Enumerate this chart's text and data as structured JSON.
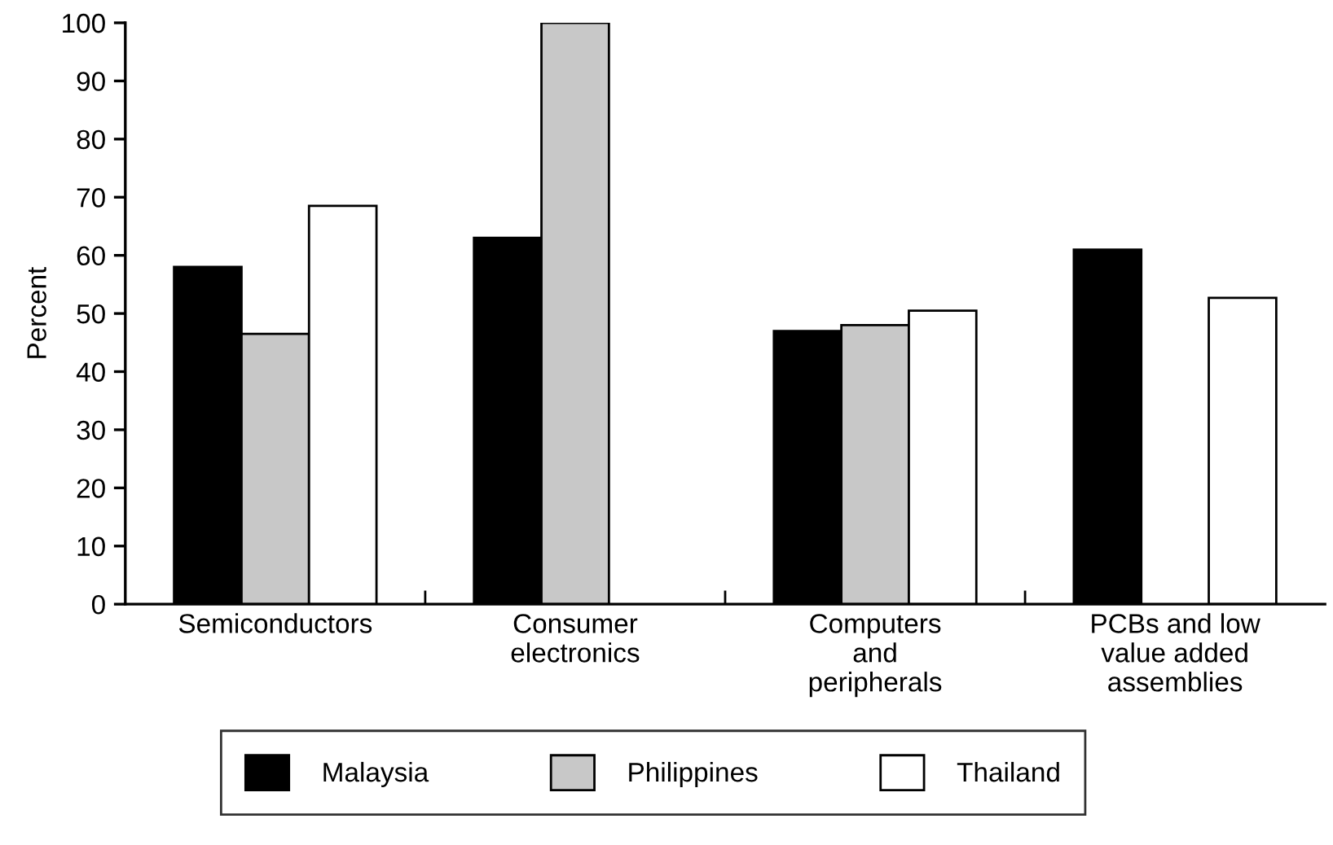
{
  "chart_data": {
    "type": "bar",
    "ylabel": "Percent",
    "categories": [
      "Semiconductors",
      "Consumer\nelectronics",
      "Computers\nand\nperipherals",
      "PCBs and low\nvalue added\nassemblies"
    ],
    "series": [
      {
        "name": "Malaysia",
        "color": "#000000",
        "values": [
          58,
          63,
          47,
          61
        ]
      },
      {
        "name": "Philippines",
        "color": "#c8c8c8",
        "values": [
          46.5,
          100,
          48,
          null
        ]
      },
      {
        "name": "Thailand",
        "color": "#ffffff",
        "values": [
          68.5,
          null,
          50.5,
          52.7
        ]
      }
    ],
    "ylim": [
      0,
      100
    ],
    "yticks": [
      0,
      10,
      20,
      30,
      40,
      50,
      60,
      70,
      80,
      90,
      100
    ],
    "grid": false,
    "legend": "bottom"
  }
}
